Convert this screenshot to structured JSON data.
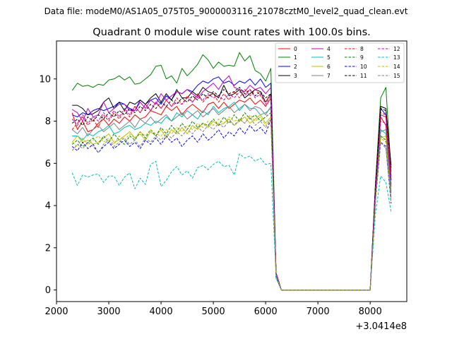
{
  "chart_data": {
    "type": "line",
    "suptitle": "Data file: modeM0/AS1A05_075T05_9000003116_21078cztM0_level2_quad_clean.evt",
    "title": "Quadrant 0 module wise count rates with 100.0s bins.",
    "xlabel": "",
    "ylabel": "",
    "x_offset_label": "+3.0414e8",
    "xlim": [
      2000,
      8700
    ],
    "ylim": [
      -0.55,
      11.8
    ],
    "x_ticks": [
      2000,
      3000,
      4000,
      5000,
      6000,
      7000,
      8000
    ],
    "x_tick_labels": [
      "2000",
      "3000",
      "4000",
      "5000",
      "6000",
      "7000",
      "8000"
    ],
    "y_ticks": [
      0,
      2,
      4,
      6,
      8,
      10
    ],
    "y_tick_labels": [
      "0",
      "2",
      "4",
      "6",
      "8",
      "10"
    ],
    "legend_position": "top-right",
    "x": [
      2300,
      2400,
      2500,
      2600,
      2700,
      2800,
      2900,
      3000,
      3100,
      3200,
      3300,
      3400,
      3500,
      3600,
      3700,
      3800,
      3900,
      4000,
      4100,
      4200,
      4300,
      4400,
      4500,
      4600,
      4700,
      4800,
      4900,
      5000,
      5100,
      5200,
      5300,
      5400,
      5500,
      5600,
      5700,
      5800,
      5900,
      6000,
      6100,
      6200,
      6300,
      6400,
      6500,
      6600,
      6700,
      6800,
      6900,
      7000,
      7100,
      7200,
      7300,
      7400,
      7500,
      7600,
      7700,
      7800,
      7900,
      8000,
      8100,
      8200,
      8300,
      8400
    ],
    "series": [
      {
        "name": "0",
        "color": "#ff0000",
        "dash": "solid",
        "values": [
          8.4,
          7.6,
          8.0,
          7.5,
          7.6,
          7.9,
          8.1,
          7.8,
          8.1,
          7.9,
          8.2,
          8.0,
          8.3,
          8.1,
          8.2,
          8.5,
          8.4,
          8.3,
          8.7,
          8.5,
          8.7,
          8.3,
          8.6,
          8.8,
          8.6,
          8.4,
          8.8,
          8.9,
          8.6,
          8.9,
          8.6,
          8.8,
          9.0,
          8.9,
          9.1,
          8.8,
          9.0,
          8.7,
          9.1,
          0.7,
          0.0,
          0.0,
          0.0,
          0.0,
          0.0,
          0.0,
          0.0,
          0.0,
          0.0,
          0.0,
          0.0,
          0.0,
          0.0,
          0.0,
          0.0,
          0.0,
          0.0,
          0.0,
          4.5,
          8.2,
          7.8,
          4.9
        ]
      },
      {
        "name": "1",
        "color": "#008000",
        "dash": "solid",
        "values": [
          9.45,
          9.8,
          9.65,
          9.7,
          9.6,
          9.75,
          9.7,
          9.95,
          10.0,
          10.15,
          9.95,
          10.1,
          9.75,
          9.8,
          10.0,
          10.2,
          10.6,
          10.65,
          10.0,
          10.15,
          9.8,
          10.5,
          10.15,
          10.4,
          10.7,
          11.15,
          10.9,
          10.5,
          10.8,
          10.6,
          10.65,
          10.6,
          11.25,
          10.85,
          11.1,
          10.4,
          10.25,
          9.9,
          10.5,
          0.8,
          0.0,
          0.0,
          0.0,
          0.0,
          0.0,
          0.0,
          0.0,
          0.0,
          0.0,
          0.0,
          0.0,
          0.0,
          0.0,
          0.0,
          0.0,
          0.0,
          0.0,
          0.0,
          5.0,
          9.1,
          9.6,
          5.6
        ]
      },
      {
        "name": "2",
        "color": "#0000ff",
        "dash": "solid",
        "values": [
          8.3,
          8.2,
          8.4,
          8.3,
          8.5,
          8.6,
          8.5,
          8.6,
          8.7,
          8.9,
          8.8,
          8.6,
          8.5,
          9.0,
          8.8,
          9.0,
          9.1,
          8.8,
          9.2,
          9.0,
          9.4,
          9.3,
          9.5,
          9.4,
          9.7,
          9.9,
          9.8,
          10.0,
          10.1,
          9.8,
          9.9,
          9.7,
          9.9,
          9.8,
          10.0,
          9.7,
          10.0,
          9.6,
          9.8,
          0.8,
          0.0,
          0.0,
          0.0,
          0.0,
          0.0,
          0.0,
          0.0,
          0.0,
          0.0,
          0.0,
          0.0,
          0.0,
          0.0,
          0.0,
          0.0,
          0.0,
          0.0,
          0.0,
          4.8,
          8.6,
          8.3,
          5.2
        ]
      },
      {
        "name": "3",
        "color": "#000000",
        "dash": "solid",
        "values": [
          8.75,
          8.75,
          8.6,
          8.3,
          8.35,
          8.5,
          8.9,
          9.1,
          8.6,
          8.9,
          8.5,
          8.9,
          8.8,
          9.0,
          8.8,
          9.1,
          9.3,
          8.9,
          9.3,
          9.0,
          9.5,
          9.1,
          9.1,
          9.4,
          9.2,
          9.6,
          9.4,
          9.3,
          9.1,
          9.7,
          9.2,
          9.3,
          9.5,
          9.1,
          9.3,
          9.5,
          9.4,
          8.9,
          9.3,
          0.8,
          0.0,
          0.0,
          0.0,
          0.0,
          0.0,
          0.0,
          0.0,
          0.0,
          0.0,
          0.0,
          0.0,
          0.0,
          0.0,
          0.0,
          0.0,
          0.0,
          0.0,
          0.0,
          5.0,
          8.7,
          8.6,
          5.9
        ]
      },
      {
        "name": "4",
        "color": "#bf00bf",
        "dash": "solid",
        "values": [
          8.55,
          8.4,
          8.0,
          8.6,
          8.2,
          8.3,
          8.9,
          8.4,
          8.6,
          8.8,
          8.8,
          8.5,
          8.5,
          8.9,
          8.6,
          9.0,
          8.8,
          9.3,
          9.0,
          9.2,
          9.4,
          9.3,
          9.5,
          9.3,
          9.1,
          9.4,
          9.6,
          9.8,
          9.5,
          9.9,
          10.15,
          9.6,
          9.5,
          9.4,
          9.7,
          9.5,
          9.6,
          9.3,
          9.6,
          0.8,
          0.0,
          0.0,
          0.0,
          0.0,
          0.0,
          0.0,
          0.0,
          0.0,
          0.0,
          0.0,
          0.0,
          0.0,
          0.0,
          0.0,
          0.0,
          0.0,
          0.0,
          0.0,
          4.9,
          8.3,
          8.2,
          5.4
        ]
      },
      {
        "name": "5",
        "color": "#00bfbf",
        "dash": "solid",
        "values": [
          7.3,
          7.3,
          7.1,
          7.4,
          7.3,
          7.5,
          7.6,
          7.8,
          7.4,
          7.5,
          7.7,
          7.8,
          7.6,
          7.7,
          7.9,
          7.8,
          8.0,
          7.9,
          8.2,
          8.0,
          8.4,
          8.2,
          8.5,
          8.3,
          8.1,
          8.5,
          8.3,
          8.7,
          8.4,
          8.6,
          8.7,
          8.9,
          8.5,
          8.8,
          8.6,
          8.6,
          8.3,
          8.4,
          8.6,
          0.7,
          0.0,
          0.0,
          0.0,
          0.0,
          0.0,
          0.0,
          0.0,
          0.0,
          0.0,
          0.0,
          0.0,
          0.0,
          0.0,
          0.0,
          0.0,
          0.0,
          0.0,
          0.0,
          4.5,
          7.6,
          7.4,
          4.7
        ]
      },
      {
        "name": "6",
        "color": "#bfbf00",
        "dash": "solid",
        "values": [
          7.0,
          7.3,
          7.0,
          7.1,
          6.9,
          7.0,
          7.2,
          7.4,
          7.0,
          7.1,
          7.3,
          7.5,
          7.2,
          7.4,
          7.1,
          7.5,
          7.3,
          7.6,
          7.2,
          7.6,
          7.4,
          7.7,
          7.4,
          7.8,
          7.6,
          7.9,
          7.7,
          8.0,
          7.8,
          7.9,
          8.1,
          7.8,
          8.0,
          8.2,
          7.9,
          8.1,
          8.3,
          7.9,
          8.2,
          0.7,
          0.0,
          0.0,
          0.0,
          0.0,
          0.0,
          0.0,
          0.0,
          0.0,
          0.0,
          0.0,
          0.0,
          0.0,
          0.0,
          0.0,
          0.0,
          0.0,
          0.0,
          0.0,
          4.3,
          7.2,
          7.3,
          4.4
        ]
      },
      {
        "name": "7",
        "color": "#808080",
        "dash": "solid",
        "values": [
          7.6,
          7.4,
          7.7,
          7.3,
          7.6,
          7.8,
          7.5,
          7.7,
          7.9,
          7.6,
          7.8,
          8.0,
          7.7,
          8.1,
          7.9,
          8.2,
          7.9,
          8.1,
          8.3,
          8.0,
          8.2,
          8.4,
          8.1,
          8.3,
          8.5,
          8.2,
          8.4,
          8.6,
          8.3,
          8.5,
          8.7,
          8.4,
          8.6,
          8.8,
          8.5,
          8.7,
          8.6,
          8.3,
          8.7,
          0.7,
          0.0,
          0.0,
          0.0,
          0.0,
          0.0,
          0.0,
          0.0,
          0.0,
          0.0,
          0.0,
          0.0,
          0.0,
          0.0,
          0.0,
          0.0,
          0.0,
          0.0,
          0.0,
          4.4,
          7.5,
          7.6,
          4.6
        ]
      },
      {
        "name": "8",
        "color": "#ff0000",
        "dash": "dashed",
        "values": [
          7.6,
          7.9,
          8.2,
          7.8,
          8.1,
          7.7,
          8.3,
          8.0,
          8.4,
          8.1,
          8.5,
          8.2,
          8.7,
          8.4,
          8.8,
          8.5,
          8.9,
          8.6,
          9.0,
          8.7,
          9.1,
          8.8,
          9.2,
          8.9,
          9.3,
          8.9,
          9.2,
          9.3,
          8.9,
          9.3,
          9.0,
          9.4,
          9.1,
          9.5,
          9.2,
          9.5,
          9.2,
          8.9,
          9.3,
          0.8,
          0.0,
          0.0,
          0.0,
          0.0,
          0.0,
          0.0,
          0.0,
          0.0,
          0.0,
          0.0,
          0.0,
          0.0,
          0.0,
          0.0,
          0.0,
          0.0,
          0.0,
          0.0,
          4.7,
          8.4,
          8.3,
          5.2
        ]
      },
      {
        "name": "9",
        "color": "#008000",
        "dash": "dashed",
        "values": [
          6.9,
          7.1,
          6.8,
          7.0,
          7.2,
          6.9,
          7.3,
          7.0,
          7.4,
          7.1,
          6.9,
          7.3,
          7.1,
          7.5,
          7.2,
          7.6,
          7.3,
          7.7,
          7.4,
          7.8,
          7.5,
          7.9,
          7.6,
          8.0,
          7.7,
          7.9,
          7.8,
          8.1,
          7.8,
          8.2,
          7.9,
          8.3,
          8.0,
          8.4,
          8.1,
          8.3,
          8.0,
          8.2,
          8.4,
          0.7,
          0.0,
          0.0,
          0.0,
          0.0,
          0.0,
          0.0,
          0.0,
          0.0,
          0.0,
          0.0,
          0.0,
          0.0,
          0.0,
          0.0,
          0.0,
          0.0,
          0.0,
          0.0,
          4.3,
          7.3,
          7.1,
          4.3
        ]
      },
      {
        "name": "10",
        "color": "#0000ff",
        "dash": "dashed",
        "values": [
          6.8,
          6.6,
          7.0,
          6.7,
          6.9,
          6.5,
          6.8,
          7.0,
          6.7,
          6.9,
          7.1,
          6.8,
          7.0,
          6.7,
          7.1,
          6.9,
          7.2,
          6.9,
          7.3,
          7.0,
          7.2,
          6.8,
          7.1,
          7.3,
          7.0,
          7.4,
          7.1,
          7.3,
          7.6,
          7.2,
          7.5,
          7.3,
          7.7,
          7.4,
          7.8,
          7.5,
          7.7,
          7.4,
          8.1,
          0.6,
          0.0,
          0.0,
          0.0,
          0.0,
          0.0,
          0.0,
          0.0,
          0.0,
          0.0,
          0.0,
          0.0,
          0.0,
          0.0,
          0.0,
          0.0,
          0.0,
          0.0,
          0.0,
          4.2,
          7.0,
          6.8,
          4.1
        ]
      },
      {
        "name": "11",
        "color": "#000000",
        "dash": "dashed",
        "values": [
          7.9,
          8.1,
          7.8,
          8.2,
          8.0,
          8.3,
          8.1,
          8.4,
          8.2,
          8.5,
          8.3,
          8.6,
          8.4,
          8.7,
          8.5,
          8.8,
          8.6,
          8.9,
          8.7,
          9.0,
          8.8,
          9.1,
          8.9,
          9.2,
          9.0,
          9.3,
          9.1,
          9.4,
          9.2,
          9.5,
          9.3,
          9.4,
          9.6,
          9.3,
          9.5,
          9.2,
          9.4,
          9.1,
          9.3,
          0.8,
          0.0,
          0.0,
          0.0,
          0.0,
          0.0,
          0.0,
          0.0,
          0.0,
          0.0,
          0.0,
          0.0,
          0.0,
          0.0,
          0.0,
          0.0,
          0.0,
          0.0,
          0.0,
          4.8,
          8.6,
          8.5,
          5.8
        ]
      },
      {
        "name": "12",
        "color": "#bf00bf",
        "dash": "dashed",
        "values": [
          8.1,
          7.8,
          8.3,
          7.9,
          8.2,
          8.0,
          8.4,
          8.1,
          8.5,
          8.2,
          8.6,
          8.3,
          8.7,
          8.4,
          8.8,
          8.5,
          8.9,
          8.6,
          9.0,
          8.7,
          8.9,
          8.8,
          9.1,
          8.9,
          9.2,
          9.0,
          9.3,
          9.1,
          9.2,
          9.0,
          9.3,
          9.1,
          9.4,
          9.2,
          9.5,
          9.1,
          9.3,
          8.8,
          9.2,
          0.8,
          0.0,
          0.0,
          0.0,
          0.0,
          0.0,
          0.0,
          0.0,
          0.0,
          0.0,
          0.0,
          0.0,
          0.0,
          0.0,
          0.0,
          0.0,
          0.0,
          0.0,
          0.0,
          4.6,
          8.0,
          7.9,
          5.0
        ]
      },
      {
        "name": "13",
        "color": "#00bfbf",
        "dash": "dashed",
        "values": [
          5.55,
          4.95,
          5.45,
          5.35,
          5.45,
          5.5,
          5.1,
          5.4,
          5.4,
          4.95,
          5.35,
          5.55,
          4.8,
          5.3,
          5.0,
          5.95,
          6.1,
          4.9,
          5.2,
          5.6,
          5.85,
          5.45,
          5.65,
          5.3,
          5.8,
          5.9,
          5.7,
          5.95,
          6.1,
          5.85,
          5.9,
          5.45,
          6.45,
          6.25,
          6.35,
          6.1,
          6.25,
          5.95,
          6.0,
          0.55,
          0.0,
          0.0,
          0.0,
          0.0,
          0.0,
          0.0,
          0.0,
          0.0,
          0.0,
          0.0,
          0.0,
          0.0,
          0.0,
          0.0,
          0.0,
          0.0,
          0.0,
          0.0,
          3.6,
          5.4,
          5.1,
          3.7
        ]
      },
      {
        "name": "14",
        "color": "#bfbf00",
        "dash": "dashed",
        "values": [
          7.0,
          6.8,
          7.2,
          6.9,
          7.1,
          7.3,
          7.0,
          7.2,
          6.9,
          7.3,
          7.1,
          7.4,
          7.2,
          7.5,
          7.3,
          7.6,
          7.4,
          7.3,
          7.6,
          7.4,
          7.7,
          7.5,
          7.8,
          7.6,
          7.9,
          7.7,
          8.0,
          7.8,
          8.1,
          7.9,
          8.2,
          8.0,
          8.1,
          7.9,
          8.3,
          8.0,
          8.2,
          7.8,
          8.1,
          0.7,
          0.0,
          0.0,
          0.0,
          0.0,
          0.0,
          0.0,
          0.0,
          0.0,
          0.0,
          0.0,
          0.0,
          0.0,
          0.0,
          0.0,
          0.0,
          0.0,
          0.0,
          0.0,
          4.2,
          7.2,
          7.0,
          4.2
        ]
      },
      {
        "name": "15",
        "color": "#808080",
        "dash": "dashed",
        "values": [
          6.6,
          6.9,
          6.7,
          7.0,
          6.8,
          6.5,
          6.9,
          7.1,
          6.8,
          7.0,
          7.2,
          6.9,
          7.1,
          6.8,
          7.2,
          7.0,
          7.3,
          7.1,
          7.4,
          7.2,
          7.5,
          7.3,
          7.6,
          7.4,
          7.7,
          7.5,
          7.8,
          7.6,
          7.9,
          7.7,
          8.0,
          7.8,
          8.1,
          7.9,
          8.2,
          7.8,
          8.0,
          7.7,
          8.1,
          0.7,
          0.0,
          0.0,
          0.0,
          0.0,
          0.0,
          0.0,
          0.0,
          0.0,
          0.0,
          0.0,
          0.0,
          0.0,
          0.0,
          0.0,
          0.0,
          0.0,
          0.0,
          0.0,
          4.2,
          7.0,
          6.7,
          4.3
        ]
      }
    ]
  }
}
